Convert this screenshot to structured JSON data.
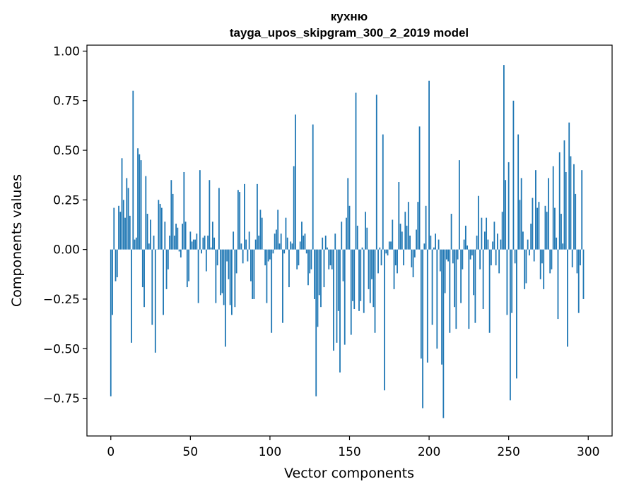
{
  "chart_data": {
    "type": "bar",
    "title": "кухню",
    "subtitle": "tayga_upos_skipgram_300_2_2019 model",
    "xlabel": "Vector components",
    "ylabel": "Components values",
    "xlim": [
      -15,
      315
    ],
    "ylim": [
      -0.94,
      1.03
    ],
    "xticks": [
      0,
      50,
      100,
      150,
      200,
      250,
      300
    ],
    "xtick_labels": [
      "0",
      "50",
      "100",
      "150",
      "200",
      "250",
      "300"
    ],
    "yticks": [
      1.0,
      0.75,
      0.5,
      0.25,
      0.0,
      -0.25,
      -0.5,
      -0.75
    ],
    "ytick_labels": [
      "1.00",
      "0.75",
      "0.50",
      "0.25",
      "0.00",
      "−0.25",
      "−0.50",
      "−0.75"
    ],
    "grid": false,
    "bar_color": "#1f77b4",
    "values": [
      -0.74,
      -0.33,
      0.21,
      -0.16,
      -0.14,
      0.22,
      0.19,
      0.46,
      0.25,
      0.16,
      0.36,
      0.31,
      0.17,
      -0.47,
      0.8,
      0.05,
      0.06,
      0.51,
      0.48,
      0.45,
      -0.19,
      -0.29,
      0.37,
      0.18,
      0.03,
      0.15,
      -0.38,
      0.07,
      -0.52,
      0.0,
      0.25,
      0.23,
      0.21,
      -0.33,
      0.14,
      -0.2,
      -0.1,
      0.07,
      0.35,
      0.28,
      0.07,
      0.13,
      0.11,
      -0.01,
      -0.04,
      0.13,
      0.39,
      0.14,
      -0.19,
      -0.16,
      0.09,
      0.04,
      0.05,
      0.05,
      0.08,
      -0.27,
      0.4,
      -0.02,
      0.06,
      0.07,
      -0.11,
      0.07,
      0.35,
      0.01,
      0.14,
      0.06,
      -0.27,
      -0.08,
      0.31,
      -0.23,
      -0.22,
      -0.28,
      -0.49,
      -0.06,
      -0.15,
      -0.28,
      -0.33,
      0.09,
      -0.29,
      -0.12,
      0.3,
      0.29,
      0.03,
      -0.07,
      0.33,
      0.05,
      -0.06,
      0.09,
      -0.16,
      -0.25,
      -0.25,
      0.05,
      0.33,
      0.07,
      0.2,
      0.16,
      0.0,
      -0.08,
      -0.27,
      -0.06,
      -0.05,
      -0.42,
      -0.02,
      0.08,
      0.1,
      0.2,
      0.03,
      0.08,
      -0.37,
      -0.02,
      0.16,
      0.06,
      -0.19,
      0.04,
      0.03,
      0.42,
      0.68,
      -0.1,
      -0.08,
      0.04,
      0.14,
      0.07,
      0.08,
      -0.02,
      -0.18,
      -0.12,
      -0.1,
      0.63,
      -0.25,
      -0.74,
      -0.39,
      -0.23,
      -0.29,
      0.06,
      -0.19,
      0.07,
      0.01,
      -0.1,
      -0.08,
      -0.1,
      -0.51,
      0.08,
      -0.47,
      -0.31,
      -0.62,
      0.14,
      -0.16,
      -0.48,
      0.16,
      0.36,
      0.22,
      -0.43,
      -0.26,
      -0.3,
      0.79,
      0.12,
      -0.31,
      -0.26,
      0.01,
      -0.32,
      0.19,
      0.11,
      -0.2,
      -0.27,
      -0.15,
      -0.29,
      -0.42,
      0.78,
      -0.12,
      0.01,
      -0.08,
      0.58,
      -0.71,
      -0.02,
      -0.03,
      0.04,
      0.04,
      0.15,
      -0.2,
      -0.08,
      -0.12,
      0.34,
      0.13,
      0.09,
      -0.08,
      0.19,
      0.12,
      0.24,
      0.07,
      -0.09,
      -0.14,
      -0.04,
      0.1,
      0.24,
      0.62,
      -0.55,
      -0.8,
      0.03,
      0.22,
      -0.57,
      0.85,
      0.07,
      -0.38,
      0.01,
      0.08,
      -0.5,
      0.05,
      -0.11,
      -0.58,
      -0.85,
      -0.22,
      -0.05,
      -0.06,
      -0.42,
      0.18,
      -0.07,
      -0.29,
      -0.4,
      -0.05,
      0.45,
      -0.27,
      -0.1,
      0.05,
      0.12,
      0.02,
      -0.4,
      -0.05,
      -0.03,
      -0.23,
      -0.37,
      0.07,
      0.27,
      -0.1,
      0.16,
      -0.3,
      0.09,
      0.16,
      0.05,
      -0.42,
      -0.08,
      0.04,
      0.14,
      -0.08,
      0.08,
      -0.12,
      0.05,
      0.19,
      0.93,
      0.35,
      -0.33,
      0.44,
      -0.76,
      -0.32,
      0.75,
      -0.07,
      -0.65,
      0.58,
      0.25,
      0.36,
      0.09,
      -0.2,
      -0.17,
      0.05,
      -0.03,
      0.13,
      0.26,
      -0.06,
      0.4,
      0.21,
      0.24,
      -0.15,
      -0.07,
      -0.2,
      0.22,
      0.19,
      0.36,
      -0.12,
      -0.1,
      0.42,
      0.21,
      0.06,
      -0.35,
      0.49,
      0.18,
      0.03,
      0.55,
      0.39,
      -0.49,
      0.64,
      0.47,
      -0.09,
      0.43,
      0.28,
      -0.12,
      -0.32,
      -0.08,
      0.4,
      -0.25
    ]
  }
}
